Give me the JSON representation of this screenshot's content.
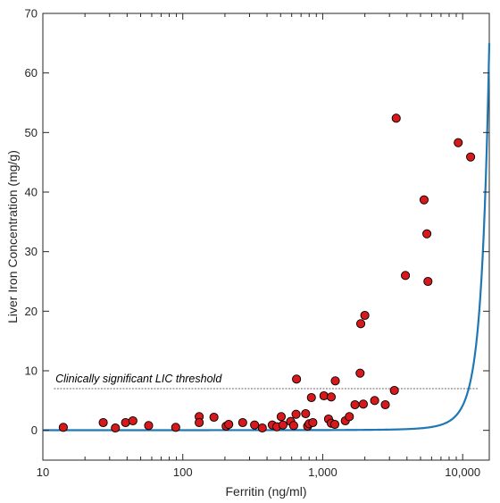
{
  "chart_data": {
    "type": "scatter",
    "title": "",
    "xlabel": "Ferritin (ng/ml)",
    "ylabel": "Liver Iron Concentration (mg/g)",
    "x_scale": "log",
    "xlim": [
      10,
      15500
    ],
    "ylim": [
      -5,
      70
    ],
    "x_ticks": [
      10,
      100,
      1000,
      10000
    ],
    "x_tick_labels": [
      "10",
      "100",
      "1,000",
      "10,000"
    ],
    "y_ticks": [
      0,
      10,
      20,
      30,
      40,
      50,
      60,
      70
    ],
    "y_tick_labels": [
      "0",
      "10",
      "20",
      "30",
      "40",
      "50",
      "60",
      "70"
    ],
    "grid": false,
    "colors": {
      "points": "#d7191c",
      "point_edge": "#000000",
      "curve": "#1f77b4",
      "threshold": "#333333"
    },
    "points": [
      [
        14,
        0.5
      ],
      [
        27,
        1.3
      ],
      [
        33,
        0.4
      ],
      [
        39,
        1.3
      ],
      [
        44,
        1.6
      ],
      [
        57,
        0.8
      ],
      [
        89,
        0.5
      ],
      [
        131,
        2.3
      ],
      [
        131,
        1.3
      ],
      [
        167,
        2.2
      ],
      [
        204,
        0.7
      ],
      [
        213,
        1.0
      ],
      [
        268,
        1.3
      ],
      [
        326,
        0.9
      ],
      [
        370,
        0.4
      ],
      [
        436,
        0.9
      ],
      [
        470,
        0.6
      ],
      [
        505,
        2.3
      ],
      [
        520,
        0.9
      ],
      [
        590,
        1.5
      ],
      [
        620,
        0.8
      ],
      [
        645,
        2.7
      ],
      [
        650,
        8.6
      ],
      [
        755,
        2.8
      ],
      [
        780,
        0.7
      ],
      [
        800,
        1.1
      ],
      [
        830,
        5.5
      ],
      [
        850,
        1.3
      ],
      [
        1020,
        5.8
      ],
      [
        1100,
        1.9
      ],
      [
        1150,
        1.2
      ],
      [
        1150,
        5.6
      ],
      [
        1220,
        1.0
      ],
      [
        1230,
        8.3
      ],
      [
        1450,
        1.6
      ],
      [
        1550,
        2.3
      ],
      [
        1700,
        4.3
      ],
      [
        1850,
        9.6
      ],
      [
        1870,
        17.9
      ],
      [
        1950,
        4.4
      ],
      [
        2000,
        19.3
      ],
      [
        2350,
        5.0
      ],
      [
        2800,
        4.3
      ],
      [
        3250,
        6.7
      ],
      [
        3350,
        52.4
      ],
      [
        3900,
        26.0
      ],
      [
        5300,
        38.7
      ],
      [
        5550,
        33.0
      ],
      [
        5650,
        25.0
      ],
      [
        9300,
        48.3
      ],
      [
        11400,
        45.9
      ]
    ],
    "fit_curve": {
      "type": "exponential",
      "a": 0.028,
      "b": 0.0005
    },
    "threshold_line": {
      "y": 7,
      "label": "Clinically significant LIC threshold"
    }
  }
}
